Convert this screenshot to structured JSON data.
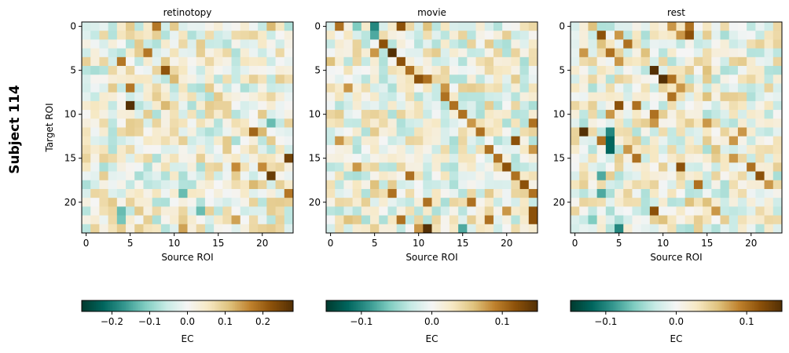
{
  "figure": {
    "row_label": "Subject 114"
  },
  "colors": {
    "cmap": [
      "#003c30",
      "#01665e",
      "#35978f",
      "#80cdc1",
      "#c7eae5",
      "#f5f5f5",
      "#f6e8c3",
      "#dfc27d",
      "#bf812d",
      "#8c510a",
      "#543005"
    ],
    "frame": "#000000"
  },
  "chart_data": [
    {
      "type": "heatmap",
      "title": "retinotopy",
      "xlabel": "Source ROI",
      "ylabel": "Target ROI",
      "n": 24,
      "x_ticks": [
        0,
        5,
        10,
        15,
        20
      ],
      "y_ticks": [
        0,
        5,
        10,
        15,
        20
      ],
      "vmin": -0.28,
      "vmax": 0.28,
      "colorbar": {
        "label": "EC",
        "ticks": [
          -0.2,
          -0.1,
          0.0,
          0.1,
          0.2
        ],
        "tick_labels": [
          "−0.2",
          "−0.1",
          "0.0",
          "0.1",
          "0.2"
        ]
      },
      "seed": 11,
      "strong": [
        [
          0,
          5,
          0.1
        ],
        [
          0,
          8,
          0.18
        ],
        [
          0,
          10,
          0.1
        ],
        [
          0,
          21,
          0.12
        ],
        [
          1,
          2,
          0.08
        ],
        [
          1,
          4,
          0.06
        ],
        [
          1,
          18,
          0.08
        ],
        [
          2,
          6,
          0.1
        ],
        [
          2,
          11,
          0.08
        ],
        [
          3,
          7,
          0.18
        ],
        [
          3,
          16,
          0.08
        ],
        [
          4,
          4,
          0.18
        ],
        [
          4,
          9,
          0.1
        ],
        [
          5,
          3,
          0.08
        ],
        [
          5,
          9,
          0.22
        ],
        [
          6,
          10,
          0.12
        ],
        [
          7,
          3,
          0.1
        ],
        [
          7,
          5,
          0.18
        ],
        [
          8,
          15,
          0.1
        ],
        [
          9,
          5,
          0.28
        ],
        [
          9,
          9,
          0.12
        ],
        [
          10,
          20,
          0.1
        ],
        [
          11,
          21,
          -0.13
        ],
        [
          12,
          19,
          0.2
        ],
        [
          12,
          20,
          0.12
        ],
        [
          13,
          16,
          0.1
        ],
        [
          14,
          16,
          0.1
        ],
        [
          15,
          23,
          0.25
        ],
        [
          16,
          17,
          0.16
        ],
        [
          16,
          20,
          0.16
        ],
        [
          16,
          13,
          -0.08
        ],
        [
          17,
          21,
          0.26
        ],
        [
          18,
          19,
          0.12
        ],
        [
          19,
          11,
          -0.13
        ],
        [
          19,
          23,
          0.18
        ],
        [
          20,
          3,
          0.1
        ],
        [
          21,
          13,
          -0.13
        ],
        [
          21,
          4,
          -0.13
        ],
        [
          22,
          4,
          -0.12
        ],
        [
          22,
          17,
          0.14
        ],
        [
          23,
          11,
          0.14
        ],
        [
          21,
          6,
          0.1
        ]
      ]
    },
    {
      "type": "heatmap",
      "title": "movie",
      "xlabel": "Source ROI",
      "ylabel": "",
      "n": 24,
      "x_ticks": [
        0,
        5,
        10,
        15,
        20
      ],
      "y_ticks": [
        0,
        5,
        10,
        15,
        20
      ],
      "vmin": -0.15,
      "vmax": 0.15,
      "colorbar": {
        "label": "EC",
        "ticks": [
          -0.1,
          0.0,
          0.1
        ],
        "tick_labels": [
          "−0.1",
          "0.0",
          "0.1"
        ]
      },
      "seed": 23,
      "strong": [
        [
          0,
          1,
          0.1
        ],
        [
          0,
          3,
          -0.06
        ],
        [
          0,
          5,
          -0.1
        ],
        [
          0,
          8,
          0.12
        ],
        [
          0,
          11,
          0.06
        ],
        [
          1,
          5,
          -0.08
        ],
        [
          2,
          6,
          0.12
        ],
        [
          3,
          7,
          0.15
        ],
        [
          3,
          5,
          0.08
        ],
        [
          4,
          8,
          0.12
        ],
        [
          4,
          0,
          0.06
        ],
        [
          5,
          9,
          0.1
        ],
        [
          6,
          10,
          0.12
        ],
        [
          6,
          11,
          0.1
        ],
        [
          7,
          2,
          0.08
        ],
        [
          7,
          13,
          0.08
        ],
        [
          8,
          13,
          0.1
        ],
        [
          9,
          14,
          0.1
        ],
        [
          10,
          15,
          0.1
        ],
        [
          11,
          16,
          0.08
        ],
        [
          11,
          23,
          0.1
        ],
        [
          12,
          17,
          0.1
        ],
        [
          13,
          21,
          0.12
        ],
        [
          13,
          1,
          0.08
        ],
        [
          14,
          18,
          0.1
        ],
        [
          14,
          23,
          0.08
        ],
        [
          15,
          19,
          0.1
        ],
        [
          16,
          3,
          0.08
        ],
        [
          16,
          20,
          0.12
        ],
        [
          17,
          9,
          0.1
        ],
        [
          17,
          21,
          0.1
        ],
        [
          18,
          22,
          0.12
        ],
        [
          18,
          5,
          0.06
        ],
        [
          19,
          7,
          0.1
        ],
        [
          19,
          23,
          0.1
        ],
        [
          20,
          11,
          0.1
        ],
        [
          20,
          16,
          0.1
        ],
        [
          21,
          20,
          0.08
        ],
        [
          21,
          23,
          0.12
        ],
        [
          22,
          2,
          0.06
        ],
        [
          22,
          8,
          0.1
        ],
        [
          22,
          18,
          0.1
        ],
        [
          22,
          23,
          0.12
        ],
        [
          23,
          10,
          0.08
        ],
        [
          23,
          11,
          0.16
        ],
        [
          23,
          15,
          -0.08
        ]
      ]
    },
    {
      "type": "heatmap",
      "title": "rest",
      "xlabel": "Source ROI",
      "ylabel": "",
      "n": 24,
      "x_ticks": [
        0,
        5,
        10,
        15,
        20
      ],
      "y_ticks": [
        0,
        5,
        10,
        15,
        20
      ],
      "vmin": -0.15,
      "vmax": 0.15,
      "colorbar": {
        "label": "EC",
        "ticks": [
          -0.1,
          0.0,
          0.1
        ],
        "tick_labels": [
          "−0.1",
          "0.0",
          "0.1"
        ]
      },
      "seed": 37,
      "strong": [
        [
          0,
          2,
          0.06
        ],
        [
          0,
          11,
          0.08
        ],
        [
          0,
          13,
          0.1
        ],
        [
          1,
          3,
          0.12
        ],
        [
          1,
          5,
          0.08
        ],
        [
          1,
          12,
          0.08
        ],
        [
          1,
          13,
          0.12
        ],
        [
          2,
          3,
          0.06
        ],
        [
          2,
          6,
          0.1
        ],
        [
          3,
          1,
          0.08
        ],
        [
          3,
          4,
          0.1
        ],
        [
          3,
          8,
          0.06
        ],
        [
          4,
          5,
          0.08
        ],
        [
          5,
          9,
          0.15
        ],
        [
          5,
          15,
          0.06
        ],
        [
          6,
          10,
          0.15
        ],
        [
          6,
          11,
          0.1
        ],
        [
          7,
          12,
          0.08
        ],
        [
          8,
          11,
          0.1
        ],
        [
          8,
          15,
          0.06
        ],
        [
          9,
          5,
          0.12
        ],
        [
          9,
          7,
          0.1
        ],
        [
          10,
          4,
          0.08
        ],
        [
          10,
          9,
          0.1
        ],
        [
          11,
          9,
          0.08
        ],
        [
          11,
          15,
          0.08
        ],
        [
          12,
          1,
          0.15
        ],
        [
          12,
          4,
          -0.1
        ],
        [
          12,
          19,
          0.08
        ],
        [
          13,
          3,
          0.1
        ],
        [
          13,
          4,
          -0.12
        ],
        [
          13,
          18,
          0.08
        ],
        [
          14,
          4,
          -0.12
        ],
        [
          14,
          6,
          0.08
        ],
        [
          14,
          16,
          0.06
        ],
        [
          15,
          7,
          0.1
        ],
        [
          15,
          18,
          0.08
        ],
        [
          16,
          12,
          0.12
        ],
        [
          16,
          20,
          0.1
        ],
        [
          17,
          21,
          0.12
        ],
        [
          17,
          3,
          -0.08
        ],
        [
          18,
          14,
          0.1
        ],
        [
          18,
          22,
          0.08
        ],
        [
          19,
          3,
          -0.08
        ],
        [
          20,
          13,
          0.06
        ],
        [
          20,
          15,
          0.06
        ],
        [
          21,
          9,
          0.12
        ],
        [
          21,
          16,
          0.08
        ],
        [
          22,
          2,
          -0.06
        ],
        [
          22,
          10,
          0.06
        ],
        [
          23,
          5,
          -0.1
        ]
      ]
    }
  ]
}
